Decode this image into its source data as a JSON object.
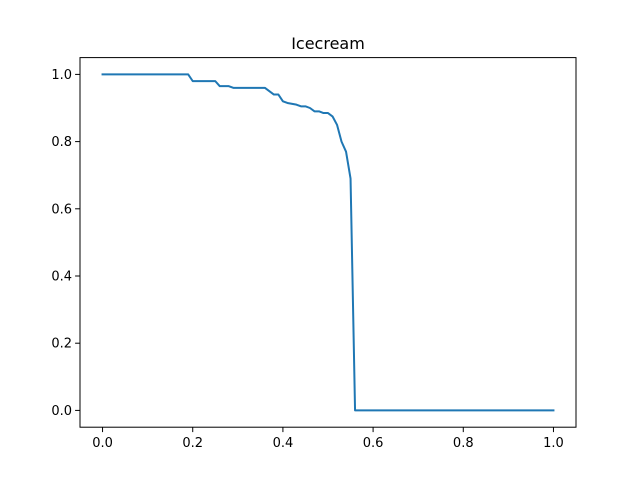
{
  "chart_data": {
    "type": "line",
    "title": "Icecream",
    "xlabel": "",
    "ylabel": "",
    "xlim": [
      -0.05,
      1.05
    ],
    "ylim": [
      -0.05,
      1.05
    ],
    "grid": false,
    "colors": {
      "series": "#1f77b4",
      "axes": "#000000",
      "background": "#ffffff"
    },
    "x_ticks": [
      {
        "value": 0.0,
        "label": "0.0"
      },
      {
        "value": 0.2,
        "label": "0.2"
      },
      {
        "value": 0.4,
        "label": "0.4"
      },
      {
        "value": 0.6,
        "label": "0.6"
      },
      {
        "value": 0.8,
        "label": "0.8"
      },
      {
        "value": 1.0,
        "label": "1.0"
      }
    ],
    "y_ticks": [
      {
        "value": 0.0,
        "label": "0.0"
      },
      {
        "value": 0.2,
        "label": "0.2"
      },
      {
        "value": 0.4,
        "label": "0.4"
      },
      {
        "value": 0.6,
        "label": "0.6"
      },
      {
        "value": 0.8,
        "label": "0.8"
      },
      {
        "value": 1.0,
        "label": "1.0"
      }
    ],
    "series": [
      {
        "name": "Icecream",
        "x": [
          0.0,
          0.19,
          0.2,
          0.25,
          0.26,
          0.28,
          0.29,
          0.36,
          0.38,
          0.39,
          0.4,
          0.41,
          0.43,
          0.44,
          0.45,
          0.46,
          0.47,
          0.48,
          0.49,
          0.5,
          0.51,
          0.52,
          0.53,
          0.54,
          0.55,
          0.56,
          0.57,
          0.6,
          0.8,
          1.0
        ],
        "y": [
          1.0,
          1.0,
          0.98,
          0.98,
          0.965,
          0.965,
          0.96,
          0.96,
          0.94,
          0.94,
          0.92,
          0.915,
          0.91,
          0.905,
          0.905,
          0.9,
          0.89,
          0.89,
          0.885,
          0.885,
          0.875,
          0.85,
          0.8,
          0.77,
          0.69,
          0.0,
          0.0,
          0.0,
          0.0,
          0.0
        ]
      }
    ]
  }
}
